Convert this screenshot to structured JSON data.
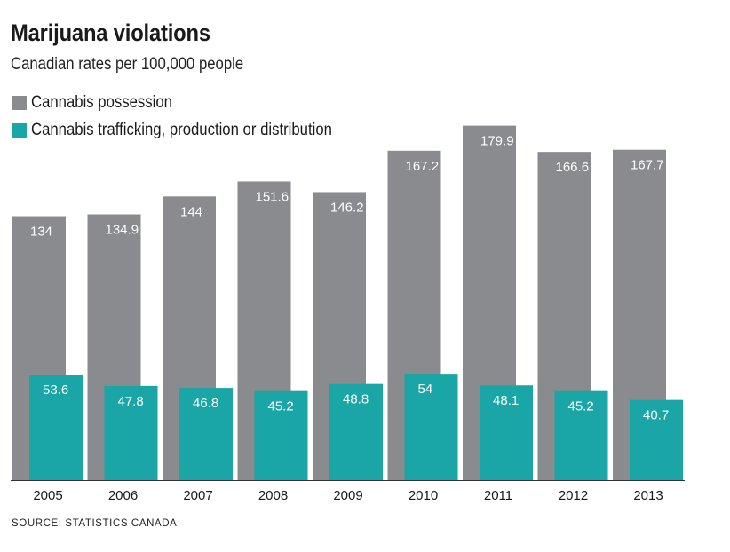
{
  "chart_data": {
    "type": "bar",
    "title": "Marijuana violations",
    "subtitle": "Canadian rates per 100,000 people",
    "categories": [
      "2005",
      "2006",
      "2007",
      "2008",
      "2009",
      "2010",
      "2011",
      "2012",
      "2013"
    ],
    "series": [
      {
        "name": "Cannabis possession",
        "color": "#8a8b8e",
        "values": [
          134,
          134.9,
          144,
          151.6,
          146.2,
          167.2,
          179.9,
          166.6,
          167.7
        ],
        "labels": [
          "134",
          "134.9",
          "144",
          "151.6",
          "146.2",
          "167.2",
          "179.9",
          "166.6",
          "167.7"
        ]
      },
      {
        "name": "Cannabis trafficking, production or distribution",
        "color": "#1aa6a6",
        "values": [
          53.6,
          47.8,
          46.8,
          45.2,
          48.8,
          54,
          48.1,
          45.2,
          40.7
        ],
        "labels": [
          "53.6",
          "47.8",
          "46.8",
          "45.2",
          "48.8",
          "54",
          "48.1",
          "45.2",
          "40.7"
        ]
      }
    ],
    "ylim": [
      0,
      180
    ],
    "grid": false,
    "legend": "top-left",
    "source": "SOURCE: STATISTICS CANADA"
  }
}
